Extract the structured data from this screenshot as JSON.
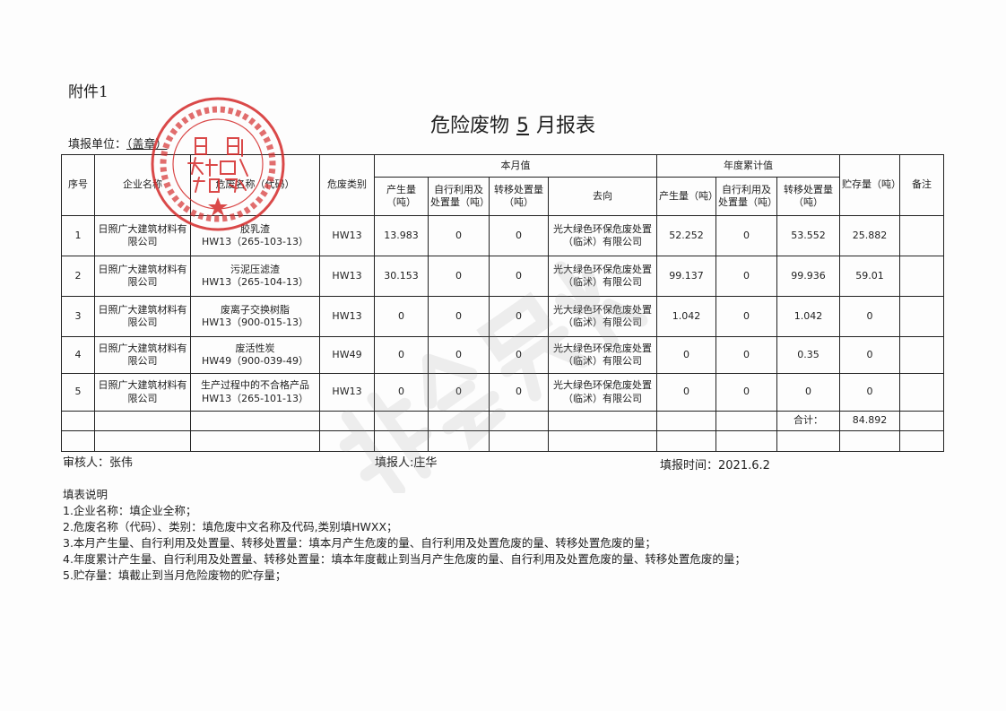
{
  "attachment": "附件1",
  "title": {
    "prefix": "危险废物",
    "month": "5",
    "suffix": "月报表"
  },
  "unit": {
    "label": "填报单位：",
    "value": "（盖章）"
  },
  "headers": {
    "seq": "序号",
    "company": "企业名称",
    "waste_name": "危废名称（代码）",
    "category": "危废类别",
    "month_group": "本月值",
    "year_group": "年度累计值",
    "produced": "产生量（吨）",
    "self_use": "自行利用及处置量（吨）",
    "transfer": "转移处置量（吨）",
    "destination": "去向",
    "storage": "贮存量（吨）",
    "remark": "备注"
  },
  "rows": [
    {
      "seq": "1",
      "company": "日照广大建筑材料有限公司",
      "name": "胶乳渣",
      "code": "HW13（265-103-13）",
      "cat": "HW13",
      "m_prod": "13.983",
      "m_self": "0",
      "m_trans": "0",
      "dest": "光大绿色环保危废处置（临沭）有限公司",
      "y_prod": "52.252",
      "y_self": "0",
      "y_trans": "53.552",
      "storage": "25.882",
      "remark": ""
    },
    {
      "seq": "2",
      "company": "日照广大建筑材料有限公司",
      "name": "污泥压滤渣",
      "code": "HW13（265-104-13）",
      "cat": "HW13",
      "m_prod": "30.153",
      "m_self": "0",
      "m_trans": "0",
      "dest": "光大绿色环保危废处置（临沭）有限公司",
      "y_prod": "99.137",
      "y_self": "0",
      "y_trans": "99.936",
      "storage": "59.01",
      "remark": ""
    },
    {
      "seq": "3",
      "company": "日照广大建筑材料有限公司",
      "name": "废离子交换树脂",
      "code": "HW13（900-015-13）",
      "cat": "HW13",
      "m_prod": "0",
      "m_self": "0",
      "m_trans": "0",
      "dest": "光大绿色环保危废处置（临沭）有限公司",
      "y_prod": "1.042",
      "y_self": "0",
      "y_trans": "1.042",
      "storage": "0",
      "remark": ""
    },
    {
      "seq": "4",
      "company": "日照广大建筑材料有限公司",
      "name": "废活性炭",
      "code": "HW49（900-039-49）",
      "cat": "HW49",
      "m_prod": "0",
      "m_self": "0",
      "m_trans": "0",
      "dest": "光大绿色环保危废处置（临沭）有限公司",
      "y_prod": "0",
      "y_self": "0",
      "y_trans": "0.35",
      "storage": "0",
      "remark": ""
    },
    {
      "seq": "5",
      "company": "日照广大建筑材料有限公司",
      "name": "生产过程中的不合格产品",
      "code": "HW13（265-101-13）",
      "cat": "HW13",
      "m_prod": "0",
      "m_self": "0",
      "m_trans": "0",
      "dest": "光大绿色环保危废处置（临沭）有限公司",
      "y_prod": "0",
      "y_self": "0",
      "y_trans": "0",
      "storage": "0",
      "remark": ""
    }
  ],
  "total": {
    "label": "合计：",
    "value": "84.892"
  },
  "footer": {
    "reviewer": "审核人：张伟",
    "filler": "填报人:庄华",
    "date": "填报时间：2021.6.2"
  },
  "notes": {
    "title": "填表说明",
    "items": [
      "1.企业名称：填企业全称；",
      "2.危废名称（代码）、类别：填危废中文名称及代码,类别填HWXX；",
      "3.本月产生量、自行利用及处置量、转移处置量：填本月产生危废的量、自行利用及处置危废的量、转移处置危废的量；",
      "4.年度累计产生量、自行利用及处置量、转移处置量：填本年度截止到当月产生危废的量、自行利用及处置危废的量、转移处置危废的量；",
      "5.贮存量：填截止到当月危险废物的贮存量；"
    ]
  },
  "stamp": {
    "outer": "RIZHAO GUANGDA BUILDING MATERIAL CO.,LTD",
    "inner": "日照广大建筑材料有限公司",
    "color": "#d42a2a"
  },
  "watermark": "非会员水印"
}
